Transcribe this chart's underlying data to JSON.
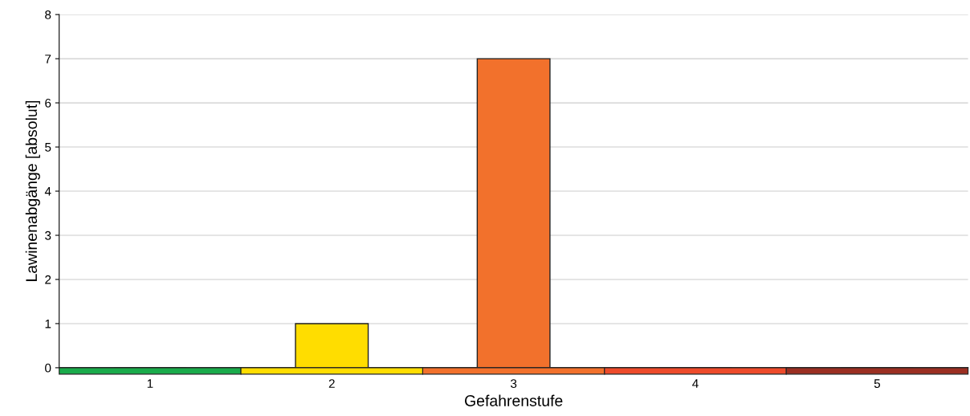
{
  "chart_data": {
    "type": "bar",
    "xlabel": "Gefahrenstufe",
    "ylabel": "Lawinenabgänge [absolut]",
    "categories": [
      "1",
      "2",
      "3",
      "4",
      "5"
    ],
    "values": [
      0,
      1,
      7,
      0,
      0
    ],
    "colors": [
      "#1aab4b",
      "#ffdd00",
      "#f2712c",
      "#ee4b2b",
      "#9b2f22"
    ],
    "ylim": [
      0,
      8
    ],
    "yticks": [
      0,
      1,
      2,
      3,
      4,
      5,
      6,
      7,
      8
    ],
    "grid": "y",
    "legend": false
  }
}
